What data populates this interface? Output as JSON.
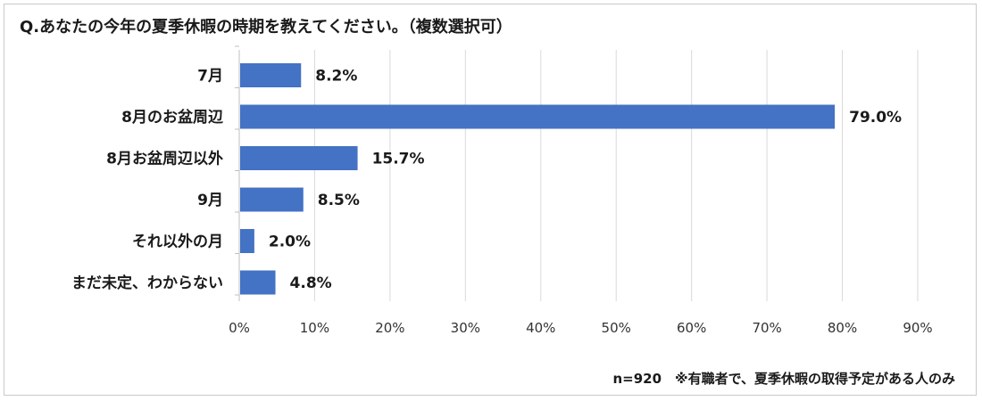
{
  "chart_data": {
    "type": "bar",
    "orientation": "horizontal",
    "title": "Q.あなたの今年の夏季休暇の時期を教えてください。（複数選択可）",
    "categories": [
      "7月",
      "8月のお盆周辺",
      "8月お盆周辺以外",
      "9月",
      "それ以外の月",
      "まだ未定、わからない"
    ],
    "values": [
      8.2,
      79.0,
      15.7,
      8.5,
      2.0,
      4.8
    ],
    "data_labels": [
      "8.2%",
      "79.0%",
      "15.7%",
      "8.5%",
      "2.0%",
      "4.8%"
    ],
    "x_ticks": [
      "0%",
      "10%",
      "20%",
      "30%",
      "40%",
      "50%",
      "60%",
      "70%",
      "80%",
      "90%"
    ],
    "xlim": [
      0,
      90
    ],
    "grid": true,
    "bar_color": "#4472c4",
    "grid_color": "#d9d9d9",
    "footnote": "n=920　※有職者で、夏季休暇の取得予定がある人のみ"
  }
}
